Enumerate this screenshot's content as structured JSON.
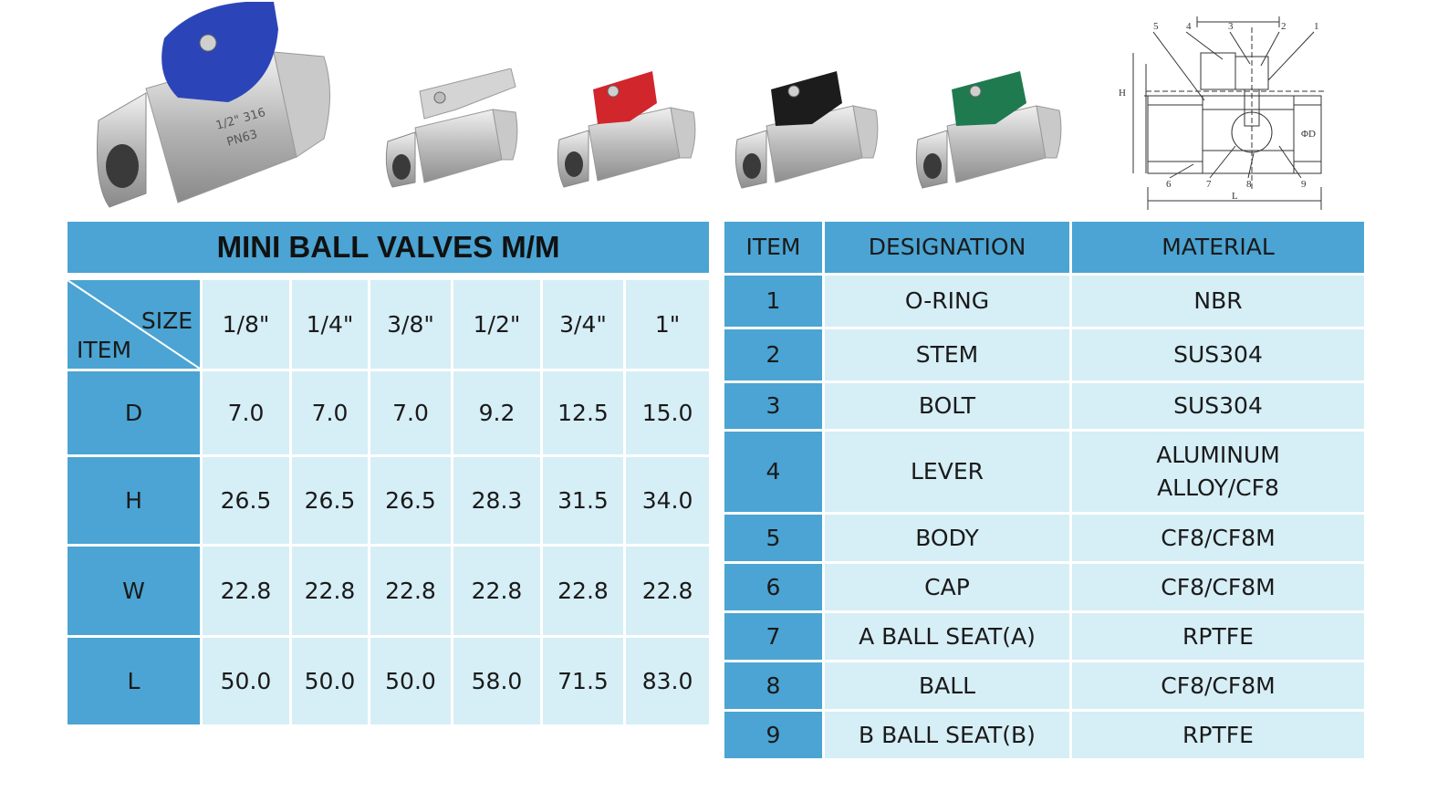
{
  "photos": [
    {
      "name": "blue-handle-valve",
      "handle_color": "#2b45b8",
      "marking": [
        "1/2\" 316",
        "PN63"
      ]
    },
    {
      "name": "silver-handle-valve",
      "handle_color": "#d4d4d4"
    },
    {
      "name": "red-handle-valve",
      "handle_color": "#d1262c"
    },
    {
      "name": "black-handle-valve",
      "handle_color": "#1c1c1c"
    },
    {
      "name": "green-handle-valve",
      "handle_color": "#1f7a4f"
    }
  ],
  "drawing_labels": {
    "top": [
      "5",
      "4",
      "3",
      "2",
      "1"
    ],
    "bottom": [
      "6",
      "7",
      "8",
      "9"
    ],
    "H": "H",
    "L": "L",
    "D": "ΦD"
  },
  "dimensions": {
    "title": "MINI BALL VALVES M/M",
    "size_label": "SIZE",
    "item_label": "ITEM",
    "sizes": [
      "1/8\"",
      "1/4\"",
      "3/8\"",
      "1/2\"",
      "3/4\"",
      "1\""
    ],
    "rows": [
      {
        "item": "D",
        "values": [
          "7.0",
          "7.0",
          "7.0",
          "9.2",
          "12.5",
          "15.0"
        ]
      },
      {
        "item": "H",
        "values": [
          "26.5",
          "26.5",
          "26.5",
          "28.3",
          "31.5",
          "34.0"
        ]
      },
      {
        "item": "W",
        "values": [
          "22.8",
          "22.8",
          "22.8",
          "22.8",
          "22.8",
          "22.8"
        ]
      },
      {
        "item": "L",
        "values": [
          "50.0",
          "50.0",
          "50.0",
          "58.0",
          "71.5",
          "83.0"
        ]
      }
    ]
  },
  "materials": {
    "headers": [
      "ITEM",
      "DESIGNATION",
      "MATERIAL"
    ],
    "rows": [
      {
        "item": "1",
        "designation": "O-RING",
        "material": "NBR"
      },
      {
        "item": "2",
        "designation": "STEM",
        "material": "SUS304"
      },
      {
        "item": "3",
        "designation": "BOLT",
        "material": "SUS304"
      },
      {
        "item": "4",
        "designation": "LEVER",
        "material": "ALUMINUM ALLOY/CF8"
      },
      {
        "item": "5",
        "designation": "BODY",
        "material": "CF8/CF8M"
      },
      {
        "item": "6",
        "designation": "CAP",
        "material": "CF8/CF8M"
      },
      {
        "item": "7",
        "designation": "A BALL SEAT(A)",
        "material": "RPTFE"
      },
      {
        "item": "8",
        "designation": "BALL",
        "material": "CF8/CF8M"
      },
      {
        "item": "9",
        "designation": "B BALL SEAT(B)",
        "material": "RPTFE"
      }
    ]
  },
  "colors": {
    "header_blue": "#4ba4d3",
    "cell_light": "#d6eef6"
  }
}
